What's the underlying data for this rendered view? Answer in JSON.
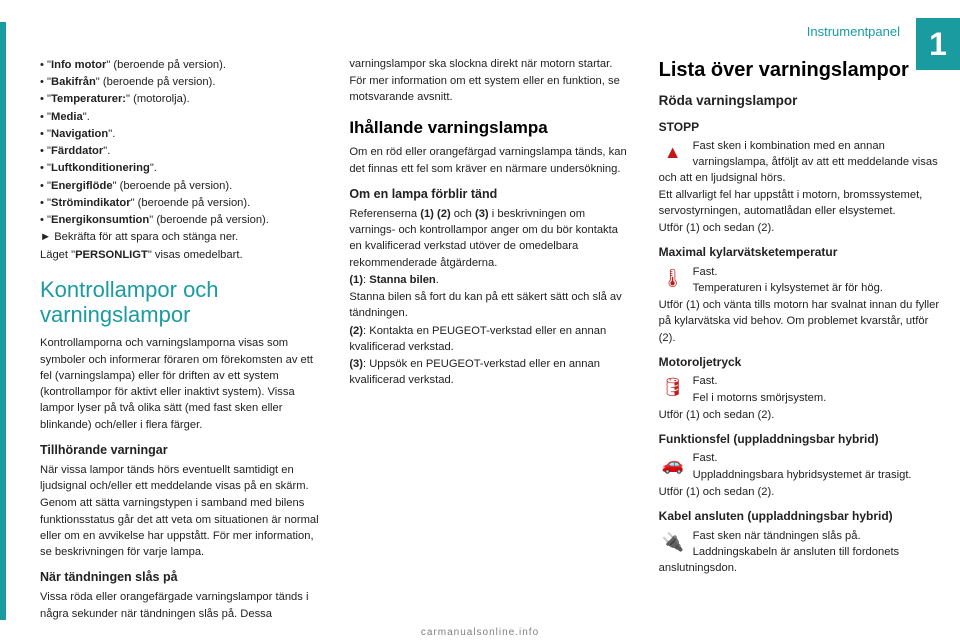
{
  "header": {
    "label": "Instrumentpanel",
    "chapter": "1"
  },
  "col1": {
    "bullets": [
      {
        "bold": "Info motor",
        "tail": "\" (beroende på version)."
      },
      {
        "bold": "Bakifrån",
        "tail": "\" (beroende på version)."
      },
      {
        "bold": "Temperaturer:",
        "tail": "\" (motorolja)."
      },
      {
        "bold": "Media",
        "tail": "\"."
      },
      {
        "bold": "Navigation",
        "tail": "\"."
      },
      {
        "bold": "Färddator",
        "tail": "\"."
      },
      {
        "bold": "Luftkonditionering",
        "tail": "\"."
      },
      {
        "bold": "Energiflöde",
        "tail": "\" (beroende på version)."
      },
      {
        "bold": "Strömindikator",
        "tail": "\" (beroende på version)."
      },
      {
        "bold": "Energikonsumtion",
        "tail": "\" (beroende på version)."
      }
    ],
    "confirm": "Bekräfta för att spara och stänga ner.",
    "mode_pre": "Läget \"",
    "mode_bold": "PERSONLIGT",
    "mode_post": "\" visas omedelbart.",
    "section": "Kontrollampor och varningslampor",
    "p1": "Kontrollamporna och varningslamporna visas som symboler och informerar föraren om förekomsten av ett fel (varningslampa) eller för driften av ett system (kontrollampor för aktivt eller inaktivt system). Vissa lampor lyser på två olika sätt (med fast sken eller blinkande) och/eller i flera färger.",
    "h4a": "Tillhörande varningar",
    "p2": "När vissa lampor tänds hörs eventuellt samtidigt en ljudsignal och/eller ett meddelande visas på en skärm.",
    "p3": "Genom att sätta varningstypen i samband med bilens funktionsstatus går det att veta om situationen är normal eller om en avvikelse har uppstått. För mer information, se beskrivningen för varje lampa."
  },
  "col2": {
    "h4a": "När tändningen slås på",
    "p1": "Vissa röda eller orangefärgade varningslampor tänds i några sekunder när tändningen slås på. Dessa varningslampor ska slockna direkt när motorn startar.",
    "p2": "För mer information om ett system eller en funktion, se motsvarande avsnitt.",
    "h3a": "Ihållande varningslampa",
    "p3": "Om en röd eller orangefärgad varningslampa tänds, kan det finnas ett fel som kräver en närmare undersökning.",
    "h4b": "Om en lampa förblir tänd",
    "p4a": "Referenserna ",
    "p4b": "(1) (2)",
    "p4c": " och ",
    "p4d": "(3)",
    "p4e": " i beskrivningen om varnings- och kontrollampor anger om du bör kontakta en kvalificerad verkstad utöver de omedelbara rekommenderade åtgärderna.",
    "l1a": "(1)",
    "l1b": ": ",
    "l1c": "Stanna bilen",
    "l1d": ".",
    "p5": "Stanna bilen så fort du kan på ett säkert sätt och slå av tändningen.",
    "l2a": "(2)",
    "l2b": ": Kontakta en PEUGEOT-verkstad eller en annan kvalificerad verkstad.",
    "l3a": "(3)",
    "l3b": ": Uppsök en PEUGEOT-verkstad eller en annan kvalificerad verkstad."
  },
  "col3": {
    "title": "Lista över varningslampor",
    "sub": "Röda varningslampor",
    "items": [
      {
        "name": "STOPP",
        "icon": "▲",
        "lead": "Fast sken i kombination med en annan varningslampa, åtföljt av att ett meddelande visas och att en ljudsignal hörs.",
        "body": "Ett allvarligt fel har uppstått i motorn, bromssystemet, servostyrningen, automatlådan eller elsystemet.",
        "action": "Utför (1) och sedan (2)."
      },
      {
        "name": "Maximal kylarvätsketemperatur",
        "icon": "🌡",
        "lead": "Fast.",
        "body": "Temperaturen i kylsystemet är för hög.",
        "extra": "Utför (1) och vänta tills motorn har svalnat innan du fyller på kylarvätska vid behov. Om problemet kvarstår, utför (2).",
        "action": ""
      },
      {
        "name": "Motoroljetryck",
        "icon": "🛢",
        "lead": "Fast.",
        "body": "Fel i motorns smörjsystem.",
        "action": "Utför (1) och sedan (2)."
      },
      {
        "name": "Funktionsfel (uppladdningsbar hybrid)",
        "icon": "🚗",
        "lead": "Fast.",
        "body": "Uppladdningsbara hybridsystemet är trasigt.",
        "action": "Utför (1) och sedan (2)."
      },
      {
        "name": "Kabel ansluten (uppladdningsbar hybrid)",
        "icon": "🔌",
        "lead": "Fast sken när tändningen slås på.",
        "body": "Laddningskabeln är ansluten till fordonets anslutningsdon.",
        "action": ""
      }
    ]
  },
  "footer": "carmanualsonline.info"
}
